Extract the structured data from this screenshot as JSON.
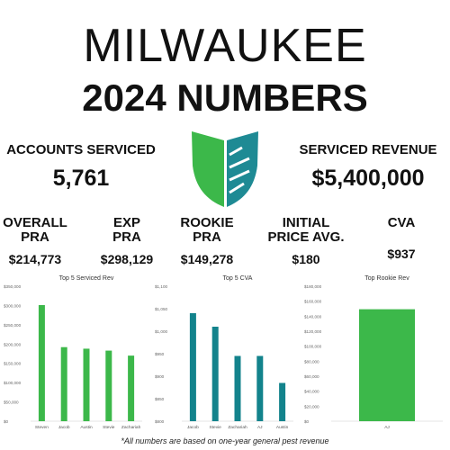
{
  "header": {
    "title": "MILWAUKEE",
    "subtitle": "2024 NUMBERS"
  },
  "logo": {
    "icon": "shield-logo-icon",
    "left_color": "#3cb84a",
    "right_color": "#1e8a94"
  },
  "stats": {
    "accounts": {
      "label": "ACCOUNTS SERVICED",
      "value": "5,761"
    },
    "revenue": {
      "label": "SERVICED REVENUE",
      "value": "$5,400,000"
    }
  },
  "pra": [
    {
      "label1": "OVERALL",
      "label2": "PRA",
      "value": "$214,773"
    },
    {
      "label1": "EXP",
      "label2": "PRA",
      "value": "$298,129"
    },
    {
      "label1": "ROOKIE",
      "label2": "PRA",
      "value": "$149,278"
    },
    {
      "label1": "INITIAL",
      "label2": "PRICE AVG.",
      "value": "$180"
    },
    {
      "label1": "",
      "label2": "CVA",
      "value": "$937"
    }
  ],
  "footnote": "*All numbers are based on one-year general pest revenue",
  "chart_data": [
    {
      "type": "bar",
      "title": "Top 5 Serviced Rev",
      "categories": [
        "Steven",
        "Jacob",
        "Austin",
        "Stevie",
        "Zachariah"
      ],
      "values": [
        301000,
        192000,
        188000,
        183000,
        170000
      ],
      "ylim": [
        0,
        350000
      ],
      "yticks": [
        0,
        50000,
        100000,
        150000,
        200000,
        250000,
        300000,
        350000
      ],
      "ytick_labels": [
        "$0",
        "$50,000",
        "$100,000",
        "$150,000",
        "$200,000",
        "$250,000",
        "$300,000",
        "$350,000"
      ],
      "color": "#3cb84a",
      "grid": false
    },
    {
      "type": "bar",
      "title": "Top 5 CVA",
      "categories": [
        "Jacob",
        "Stevie",
        "Zachariah",
        "AJ",
        "Austin"
      ],
      "values": [
        1040,
        1010,
        945,
        945,
        885
      ],
      "ylim": [
        800,
        1100
      ],
      "yticks": [
        800,
        850,
        900,
        950,
        1000,
        1050,
        1100
      ],
      "ytick_labels": [
        "$800",
        "$850",
        "$900",
        "$950",
        "$1,000",
        "$1,050",
        "$1,100"
      ],
      "color": "#13838c",
      "grid": false
    },
    {
      "type": "bar",
      "title": "Top Rookie Rev",
      "categories": [
        "AJ"
      ],
      "values": [
        149278
      ],
      "ylim": [
        0,
        180000
      ],
      "yticks": [
        0,
        20000,
        40000,
        60000,
        80000,
        100000,
        120000,
        140000,
        160000,
        180000
      ],
      "ytick_labels": [
        "$0",
        "$20,000",
        "$40,000",
        "$60,000",
        "$80,000",
        "$100,000",
        "$120,000",
        "$140,000",
        "$160,000",
        "$180,000"
      ],
      "color": "#3cb84a",
      "grid": false
    }
  ]
}
